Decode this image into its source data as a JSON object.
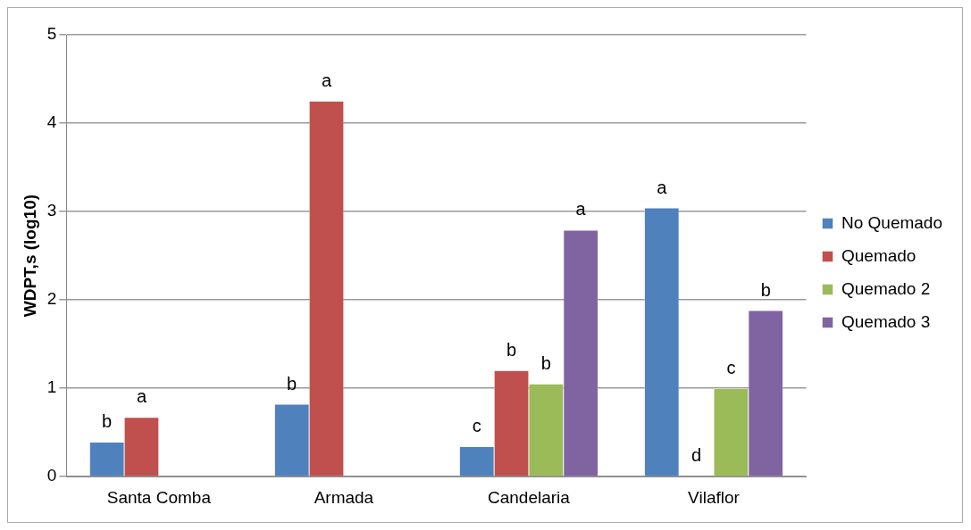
{
  "chart_data": {
    "type": "bar",
    "ylabel": "WDPT,s (log10)",
    "categories": [
      "Santa Comba",
      "Armada",
      "Candelaria",
      "Vilaflor"
    ],
    "series": [
      {
        "name": "No Quemado",
        "color": "#4f81bd",
        "values": [
          0.39,
          0.82,
          0.34,
          3.04
        ],
        "value_labels": [
          "b",
          "b",
          "c",
          "a"
        ]
      },
      {
        "name": "Quemado",
        "color": "#c0504d",
        "values": [
          0.67,
          4.25,
          1.2,
          0.01
        ],
        "value_labels": [
          "a",
          "a",
          "b",
          "d"
        ]
      },
      {
        "name": "Quemado 2",
        "color": "#9bbb59",
        "values": [
          null,
          null,
          1.05,
          1.0
        ],
        "value_labels": [
          null,
          null,
          "b",
          "c"
        ]
      },
      {
        "name": "Quemado 3",
        "color": "#8064a2",
        "values": [
          null,
          null,
          2.79,
          1.88
        ],
        "value_labels": [
          null,
          null,
          "a",
          "b"
        ]
      }
    ],
    "ylim": [
      0,
      5
    ],
    "yticks": [
      0,
      1,
      2,
      3,
      4,
      5
    ],
    "grid": "y",
    "legend": "right"
  }
}
